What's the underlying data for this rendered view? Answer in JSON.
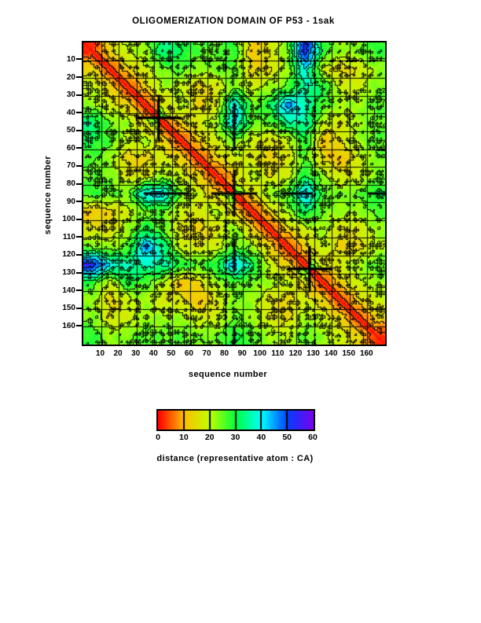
{
  "page": {
    "title": "OLIGOMERIZATION DOMAIN OF P53 - 1sak"
  },
  "chart_data": {
    "type": "heatmap",
    "title": "OLIGOMERIZATION DOMAIN OF P53 - 1sak",
    "xlabel": "sequence number",
    "ylabel": "sequence number",
    "x_ticks": [
      10,
      20,
      30,
      40,
      50,
      60,
      70,
      80,
      90,
      100,
      110,
      120,
      130,
      140,
      150,
      160
    ],
    "y_ticks": [
      10,
      20,
      30,
      40,
      50,
      60,
      70,
      80,
      90,
      100,
      110,
      120,
      130,
      140,
      150,
      160
    ],
    "axis_range": [
      1,
      170
    ],
    "n_residues": 170,
    "grid_interval": 10,
    "contour_interval": 5,
    "chain_ranges": [
      [
        1,
        42
      ],
      [
        43,
        85
      ],
      [
        86,
        127
      ],
      [
        128,
        170
      ]
    ],
    "chain_boundaries": [
      42.5,
      85,
      127.5
    ],
    "boundary_cross_arm": 13,
    "extra_boundary_marks": [
      [
        85,
        34,
        60
      ],
      [
        85,
        111,
        129
      ],
      [
        85,
        160,
        170
      ]
    ],
    "near_diagonal_slope": 1.9,
    "boundary_gap_boost": 12,
    "ripple": {
      "a1": 1.5,
      "f1": 0.55,
      "a2": 1.8,
      "f2": 2.45
    },
    "bin_centers": [
      5,
      15,
      25,
      35,
      45,
      55,
      65,
      75,
      85,
      95,
      105,
      115,
      125,
      135,
      145,
      155,
      165
    ],
    "distance_matrix_coarse": [
      [
        2,
        14,
        20,
        22,
        34,
        30,
        26,
        25,
        28,
        11,
        16,
        24,
        54,
        28,
        22,
        24,
        28
      ],
      [
        14,
        2,
        13,
        18,
        24,
        26,
        22,
        24,
        26,
        13,
        15,
        22,
        40,
        18,
        13,
        16,
        22
      ],
      [
        20,
        13,
        2,
        13,
        22,
        19,
        13,
        16,
        24,
        18,
        22,
        25,
        36,
        30,
        18,
        18,
        24
      ],
      [
        22,
        18,
        13,
        2,
        12,
        22,
        13,
        16,
        42,
        24,
        30,
        46,
        36,
        26,
        22,
        22,
        26
      ],
      [
        34,
        24,
        22,
        12,
        2,
        13,
        18,
        22,
        42,
        25,
        25,
        34,
        36,
        20,
        16,
        22,
        25
      ],
      [
        30,
        26,
        19,
        22,
        13,
        2,
        13,
        18,
        24,
        18,
        15,
        18,
        30,
        10,
        16,
        22,
        26
      ],
      [
        26,
        22,
        13,
        13,
        18,
        13,
        2,
        13,
        18,
        16,
        13,
        16,
        26,
        14,
        10,
        18,
        24
      ],
      [
        25,
        24,
        16,
        16,
        22,
        18,
        13,
        2,
        12,
        22,
        15,
        18,
        30,
        22,
        16,
        18,
        24
      ],
      [
        28,
        26,
        24,
        42,
        42,
        24,
        18,
        12,
        2,
        13,
        24,
        26,
        44,
        26,
        24,
        25,
        30
      ],
      [
        11,
        13,
        18,
        24,
        25,
        18,
        16,
        22,
        13,
        2,
        13,
        22,
        32,
        24,
        22,
        22,
        26
      ],
      [
        16,
        15,
        22,
        30,
        25,
        15,
        13,
        15,
        24,
        13,
        2,
        13,
        18,
        22,
        15,
        16,
        22
      ],
      [
        24,
        22,
        25,
        46,
        34,
        18,
        16,
        18,
        26,
        22,
        13,
        2,
        13,
        20,
        13,
        14,
        20
      ],
      [
        54,
        40,
        36,
        36,
        36,
        30,
        26,
        30,
        44,
        32,
        18,
        13,
        2,
        13,
        18,
        22,
        26
      ],
      [
        28,
        18,
        30,
        26,
        20,
        10,
        14,
        22,
        26,
        24,
        22,
        20,
        13,
        2,
        13,
        19,
        22
      ],
      [
        22,
        13,
        18,
        22,
        16,
        16,
        10,
        16,
        24,
        22,
        15,
        13,
        18,
        13,
        2,
        13,
        18
      ],
      [
        24,
        16,
        18,
        22,
        22,
        22,
        18,
        18,
        25,
        22,
        16,
        14,
        22,
        19,
        13,
        2,
        13
      ],
      [
        28,
        22,
        24,
        26,
        25,
        26,
        24,
        24,
        30,
        26,
        22,
        20,
        26,
        22,
        18,
        13,
        2
      ]
    ],
    "colormap": {
      "stops": [
        {
          "v": 0,
          "c": "#ff0000"
        },
        {
          "v": 10,
          "c": "#ffbf00"
        },
        {
          "v": 20,
          "c": "#bfff00"
        },
        {
          "v": 30,
          "c": "#00ff40"
        },
        {
          "v": 40,
          "c": "#00ffff"
        },
        {
          "v": 50,
          "c": "#0040ff"
        },
        {
          "v": 60,
          "c": "#7a00ee"
        }
      ]
    },
    "colorbar": {
      "min": 0,
      "max": 60,
      "ticks": [
        0,
        10,
        20,
        30,
        40,
        50,
        60
      ],
      "label": "distance (representative atom : CA)"
    }
  }
}
